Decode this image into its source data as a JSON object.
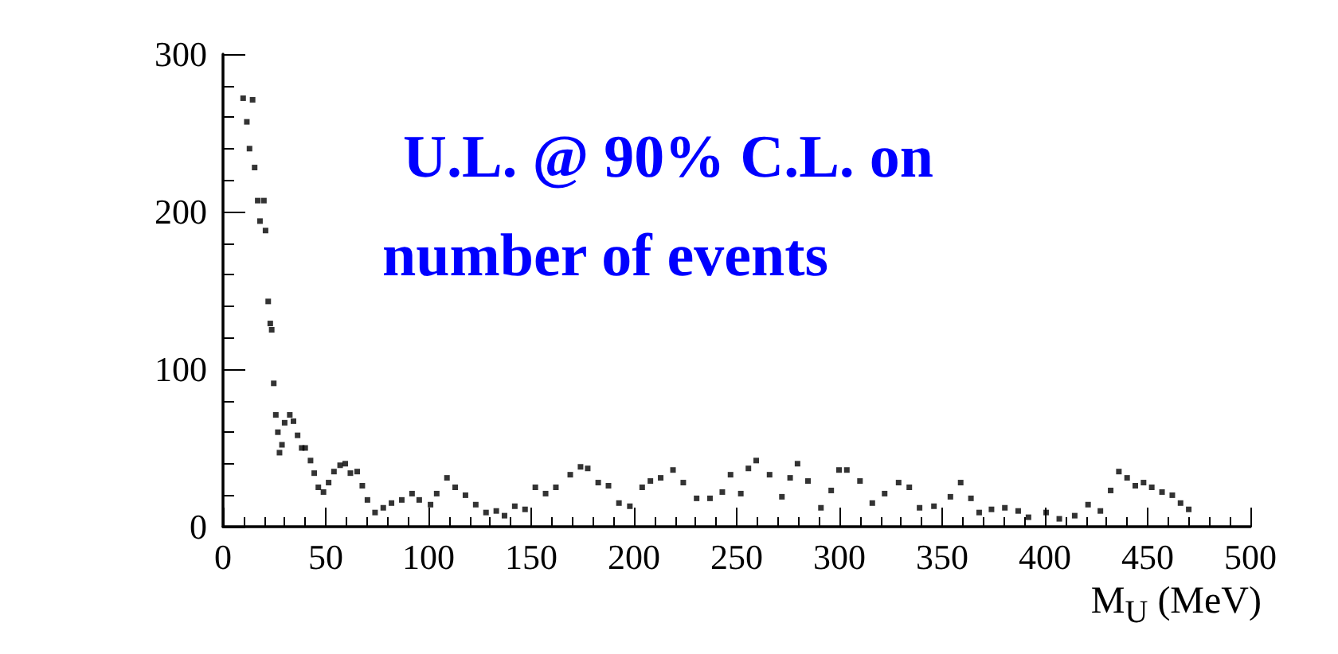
{
  "chart_data": {
    "type": "scatter",
    "xlabel": "M$_{U}$ (MeV)",
    "annotations": [
      "U.L. @ 90% C.L. on",
      "number of events"
    ],
    "x": [
      9.8,
      11.6,
      12.9,
      14.4,
      15.4,
      16.9,
      18,
      19.9,
      20.7,
      22,
      23,
      23.7,
      24.7,
      25.7,
      26.7,
      27.5,
      28.7,
      30,
      32.5,
      34.3,
      36.3,
      38.3,
      40,
      42.6,
      44.4,
      46.4,
      48.9,
      51.4,
      54,
      57,
      59.5,
      62,
      65.3,
      67.8,
      70.3,
      74,
      78,
      82,
      87,
      92,
      95.5,
      101,
      104,
      109,
      113,
      118,
      123,
      128,
      133,
      137,
      142,
      147,
      152,
      157,
      162,
      169,
      174,
      177.5,
      182.6,
      187.6,
      192.7,
      198,
      204,
      208,
      213,
      219,
      224,
      230.5,
      237,
      243,
      247,
      252,
      255.7,
      259.5,
      266,
      272,
      276,
      279.6,
      284.7,
      291,
      296,
      299.8,
      303.6,
      310,
      316,
      322,
      328.8,
      334,
      339,
      346,
      354,
      359,
      364,
      368,
      374,
      380.5,
      387,
      392,
      400.6,
      407,
      414.5,
      421,
      427,
      432,
      436,
      440,
      444,
      448,
      452,
      457,
      462,
      466,
      470
    ],
    "values": [
      272,
      257,
      240,
      271,
      228,
      207,
      194,
      207,
      188,
      143,
      129,
      125,
      91,
      71,
      60,
      47,
      52,
      66,
      71,
      67,
      58,
      50,
      50,
      42,
      34,
      25,
      22,
      28,
      35,
      39,
      40,
      34,
      35,
      26,
      17,
      9,
      12,
      15,
      17,
      21,
      17,
      14,
      21,
      31,
      25,
      20,
      14,
      9,
      10,
      7,
      13,
      11,
      25,
      21,
      25,
      33,
      38,
      37,
      28,
      26,
      15,
      13,
      25,
      29,
      31,
      36,
      28,
      18,
      18,
      22,
      33,
      21,
      37,
      42,
      33,
      19,
      31,
      40,
      29,
      12,
      23,
      36,
      36,
      29,
      15,
      21,
      28,
      25,
      12,
      13,
      19,
      28,
      18,
      9,
      11,
      12,
      10,
      6,
      9,
      5,
      7,
      14,
      10,
      23,
      35,
      31,
      26,
      28,
      25,
      22,
      20,
      15,
      11
    ],
    "color": "#000000",
    "marker": "square",
    "xlim": [
      0,
      500
    ],
    "xticks": [
      0,
      50,
      100,
      150,
      200,
      250,
      300,
      350,
      400,
      450,
      500
    ],
    "ylim": [
      0,
      300
    ],
    "yticks": [
      0,
      100,
      200,
      300
    ],
    "grid": false
  }
}
